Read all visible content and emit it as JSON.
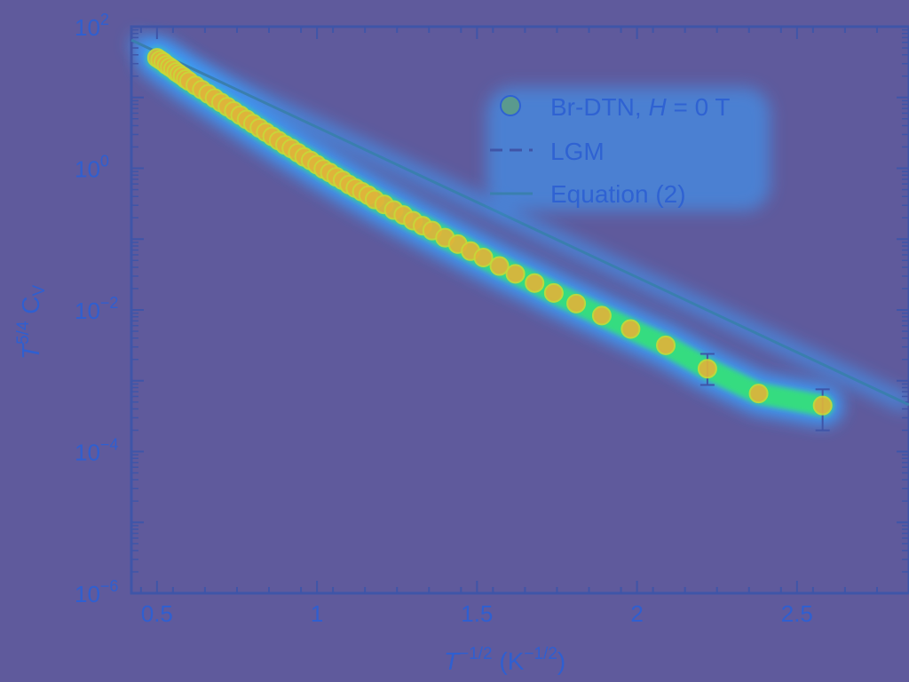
{
  "colors": {
    "background": "#5f5a9c",
    "axis": "#3f55a8",
    "tick_text": "#2f5fd0",
    "glow_outer": "#3aa0ff",
    "glow_mid": "#36e07a",
    "marker_fill": "#e0b43a",
    "marker_stroke": "#c8d838",
    "fit_line": "#3a7fae",
    "legend_marker": "#5a9a8e"
  },
  "chart_data": {
    "type": "scatter",
    "xlabel_main": "T",
    "xlabel_sup": "−1/2",
    "xlabel_unit": "(K",
    "xlabel_unit_sup": "−1/2",
    "xlabel_close": ")",
    "ylabel_main": "T",
    "ylabel_sup": "5/4",
    "ylabel_rest": " C",
    "ylabel_sub": "V",
    "xlim": [
      0.42,
      2.85
    ],
    "ylim_log10": [
      -6,
      2
    ],
    "yscale": "log",
    "x_ticks": [
      {
        "value": 0.5,
        "label": "0.5"
      },
      {
        "value": 1.0,
        "label": "1"
      },
      {
        "value": 1.5,
        "label": "1.5"
      },
      {
        "value": 2.0,
        "label": "2"
      },
      {
        "value": 2.5,
        "label": "2.5"
      }
    ],
    "y_ticks": [
      {
        "exp": 2,
        "base": "10",
        "sup": "2"
      },
      {
        "exp": 0,
        "base": "10",
        "sup": "0"
      },
      {
        "exp": -2,
        "base": "10",
        "sup": "−2"
      },
      {
        "exp": -4,
        "base": "10",
        "sup": "−4"
      },
      {
        "exp": -6,
        "base": "10",
        "sup": "−6"
      }
    ],
    "legend": {
      "placement": "top-right",
      "entries": [
        {
          "label_pre": "Br-DTN, ",
          "label_italic": "H",
          "label_post": " = 0 T",
          "style": "marker"
        },
        {
          "label_pre": "LGM",
          "label_italic": "",
          "label_post": "",
          "style": "dashed"
        },
        {
          "label_pre": "Equation (2)",
          "label_italic": "",
          "label_post": "",
          "style": "solid"
        }
      ]
    },
    "series": [
      {
        "name": "Br-DTN, H = 0 T",
        "points": [
          {
            "x": 0.5,
            "y": 1.56
          },
          {
            "x": 0.51,
            "y": 1.53
          },
          {
            "x": 0.52,
            "y": 1.5
          },
          {
            "x": 0.53,
            "y": 1.46
          },
          {
            "x": 0.54,
            "y": 1.43
          },
          {
            "x": 0.55,
            "y": 1.4
          },
          {
            "x": 0.56,
            "y": 1.36
          },
          {
            "x": 0.57,
            "y": 1.33
          },
          {
            "x": 0.58,
            "y": 1.3
          },
          {
            "x": 0.59,
            "y": 1.26
          },
          {
            "x": 0.6,
            "y": 1.23
          },
          {
            "x": 0.62,
            "y": 1.17
          },
          {
            "x": 0.64,
            "y": 1.11
          },
          {
            "x": 0.66,
            "y": 1.05
          },
          {
            "x": 0.68,
            "y": 0.99
          },
          {
            "x": 0.7,
            "y": 0.93
          },
          {
            "x": 0.72,
            "y": 0.87
          },
          {
            "x": 0.74,
            "y": 0.81
          },
          {
            "x": 0.76,
            "y": 0.75
          },
          {
            "x": 0.78,
            "y": 0.69
          },
          {
            "x": 0.8,
            "y": 0.63
          },
          {
            "x": 0.82,
            "y": 0.57
          },
          {
            "x": 0.84,
            "y": 0.51
          },
          {
            "x": 0.86,
            "y": 0.45
          },
          {
            "x": 0.88,
            "y": 0.39
          },
          {
            "x": 0.9,
            "y": 0.33
          },
          {
            "x": 0.92,
            "y": 0.28
          },
          {
            "x": 0.94,
            "y": 0.22
          },
          {
            "x": 0.96,
            "y": 0.16
          },
          {
            "x": 0.98,
            "y": 0.11
          },
          {
            "x": 1.0,
            "y": 0.05
          },
          {
            "x": 1.02,
            "y": -0.01
          },
          {
            "x": 1.04,
            "y": -0.06
          },
          {
            "x": 1.06,
            "y": -0.12
          },
          {
            "x": 1.08,
            "y": -0.17
          },
          {
            "x": 1.1,
            "y": -0.23
          },
          {
            "x": 1.12,
            "y": -0.28
          },
          {
            "x": 1.14,
            "y": -0.33
          },
          {
            "x": 1.16,
            "y": -0.38
          },
          {
            "x": 1.18,
            "y": -0.44
          },
          {
            "x": 1.21,
            "y": -0.51
          },
          {
            "x": 1.24,
            "y": -0.59
          },
          {
            "x": 1.27,
            "y": -0.66
          },
          {
            "x": 1.3,
            "y": -0.74
          },
          {
            "x": 1.33,
            "y": -0.81
          },
          {
            "x": 1.36,
            "y": -0.88
          },
          {
            "x": 1.4,
            "y": -0.98
          },
          {
            "x": 1.44,
            "y": -1.07
          },
          {
            "x": 1.48,
            "y": -1.17
          },
          {
            "x": 1.52,
            "y": -1.26
          },
          {
            "x": 1.57,
            "y": -1.38
          },
          {
            "x": 1.62,
            "y": -1.49
          },
          {
            "x": 1.68,
            "y": -1.62
          },
          {
            "x": 1.74,
            "y": -1.76
          },
          {
            "x": 1.81,
            "y": -1.91
          },
          {
            "x": 1.89,
            "y": -2.08
          },
          {
            "x": 1.98,
            "y": -2.27
          },
          {
            "x": 2.09,
            "y": -2.5
          },
          {
            "x": 2.22,
            "y": -2.83,
            "err_low": -3.06,
            "err_high": -2.62
          },
          {
            "x": 2.38,
            "y": -3.18
          },
          {
            "x": 2.58,
            "y": -3.35,
            "err_low": -3.7,
            "err_high": -3.12
          }
        ]
      },
      {
        "name": "Equation (2)",
        "style": "solid",
        "line": [
          {
            "x": 0.42,
            "y": 1.81
          },
          {
            "x": 2.85,
            "y": -3.34
          }
        ]
      }
    ]
  }
}
